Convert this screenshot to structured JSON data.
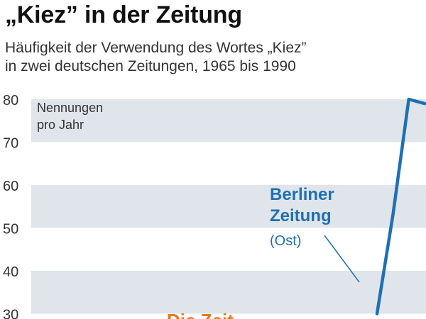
{
  "title": "„Kiez” in der Zeitung",
  "subtitle": "Häufigkeit der Verwendung des Wortes „Kiez”\nin zwei deutschen Zeitungen, 1965 bis 1990",
  "chart_data": {
    "type": "line",
    "title": "„Kiez” in der Zeitung",
    "ylabel": "Nennungen pro Jahr",
    "ylabel_lines": [
      "Nennungen",
      "pro Jahr"
    ],
    "ylim": [
      30,
      80
    ],
    "yticks": [
      "80",
      "70",
      "60",
      "50",
      "40",
      "30"
    ],
    "grid": "alternating horizontal bands",
    "series": [
      {
        "name": "Berliner Zeitung",
        "label_lines": [
          "Berliner",
          "Zeitung"
        ],
        "note": "(Ost)",
        "color": "#1f6fb5",
        "values": [
          {
            "x": 1987,
            "y": 30
          },
          {
            "x": 1988,
            "y": 53
          },
          {
            "x": 1989,
            "y": 80
          },
          {
            "x": 1990,
            "y": 79
          }
        ]
      },
      {
        "name": "Die Zeit",
        "color": "#e07b1a"
      }
    ],
    "xlim": [
      1965,
      1990
    ]
  }
}
